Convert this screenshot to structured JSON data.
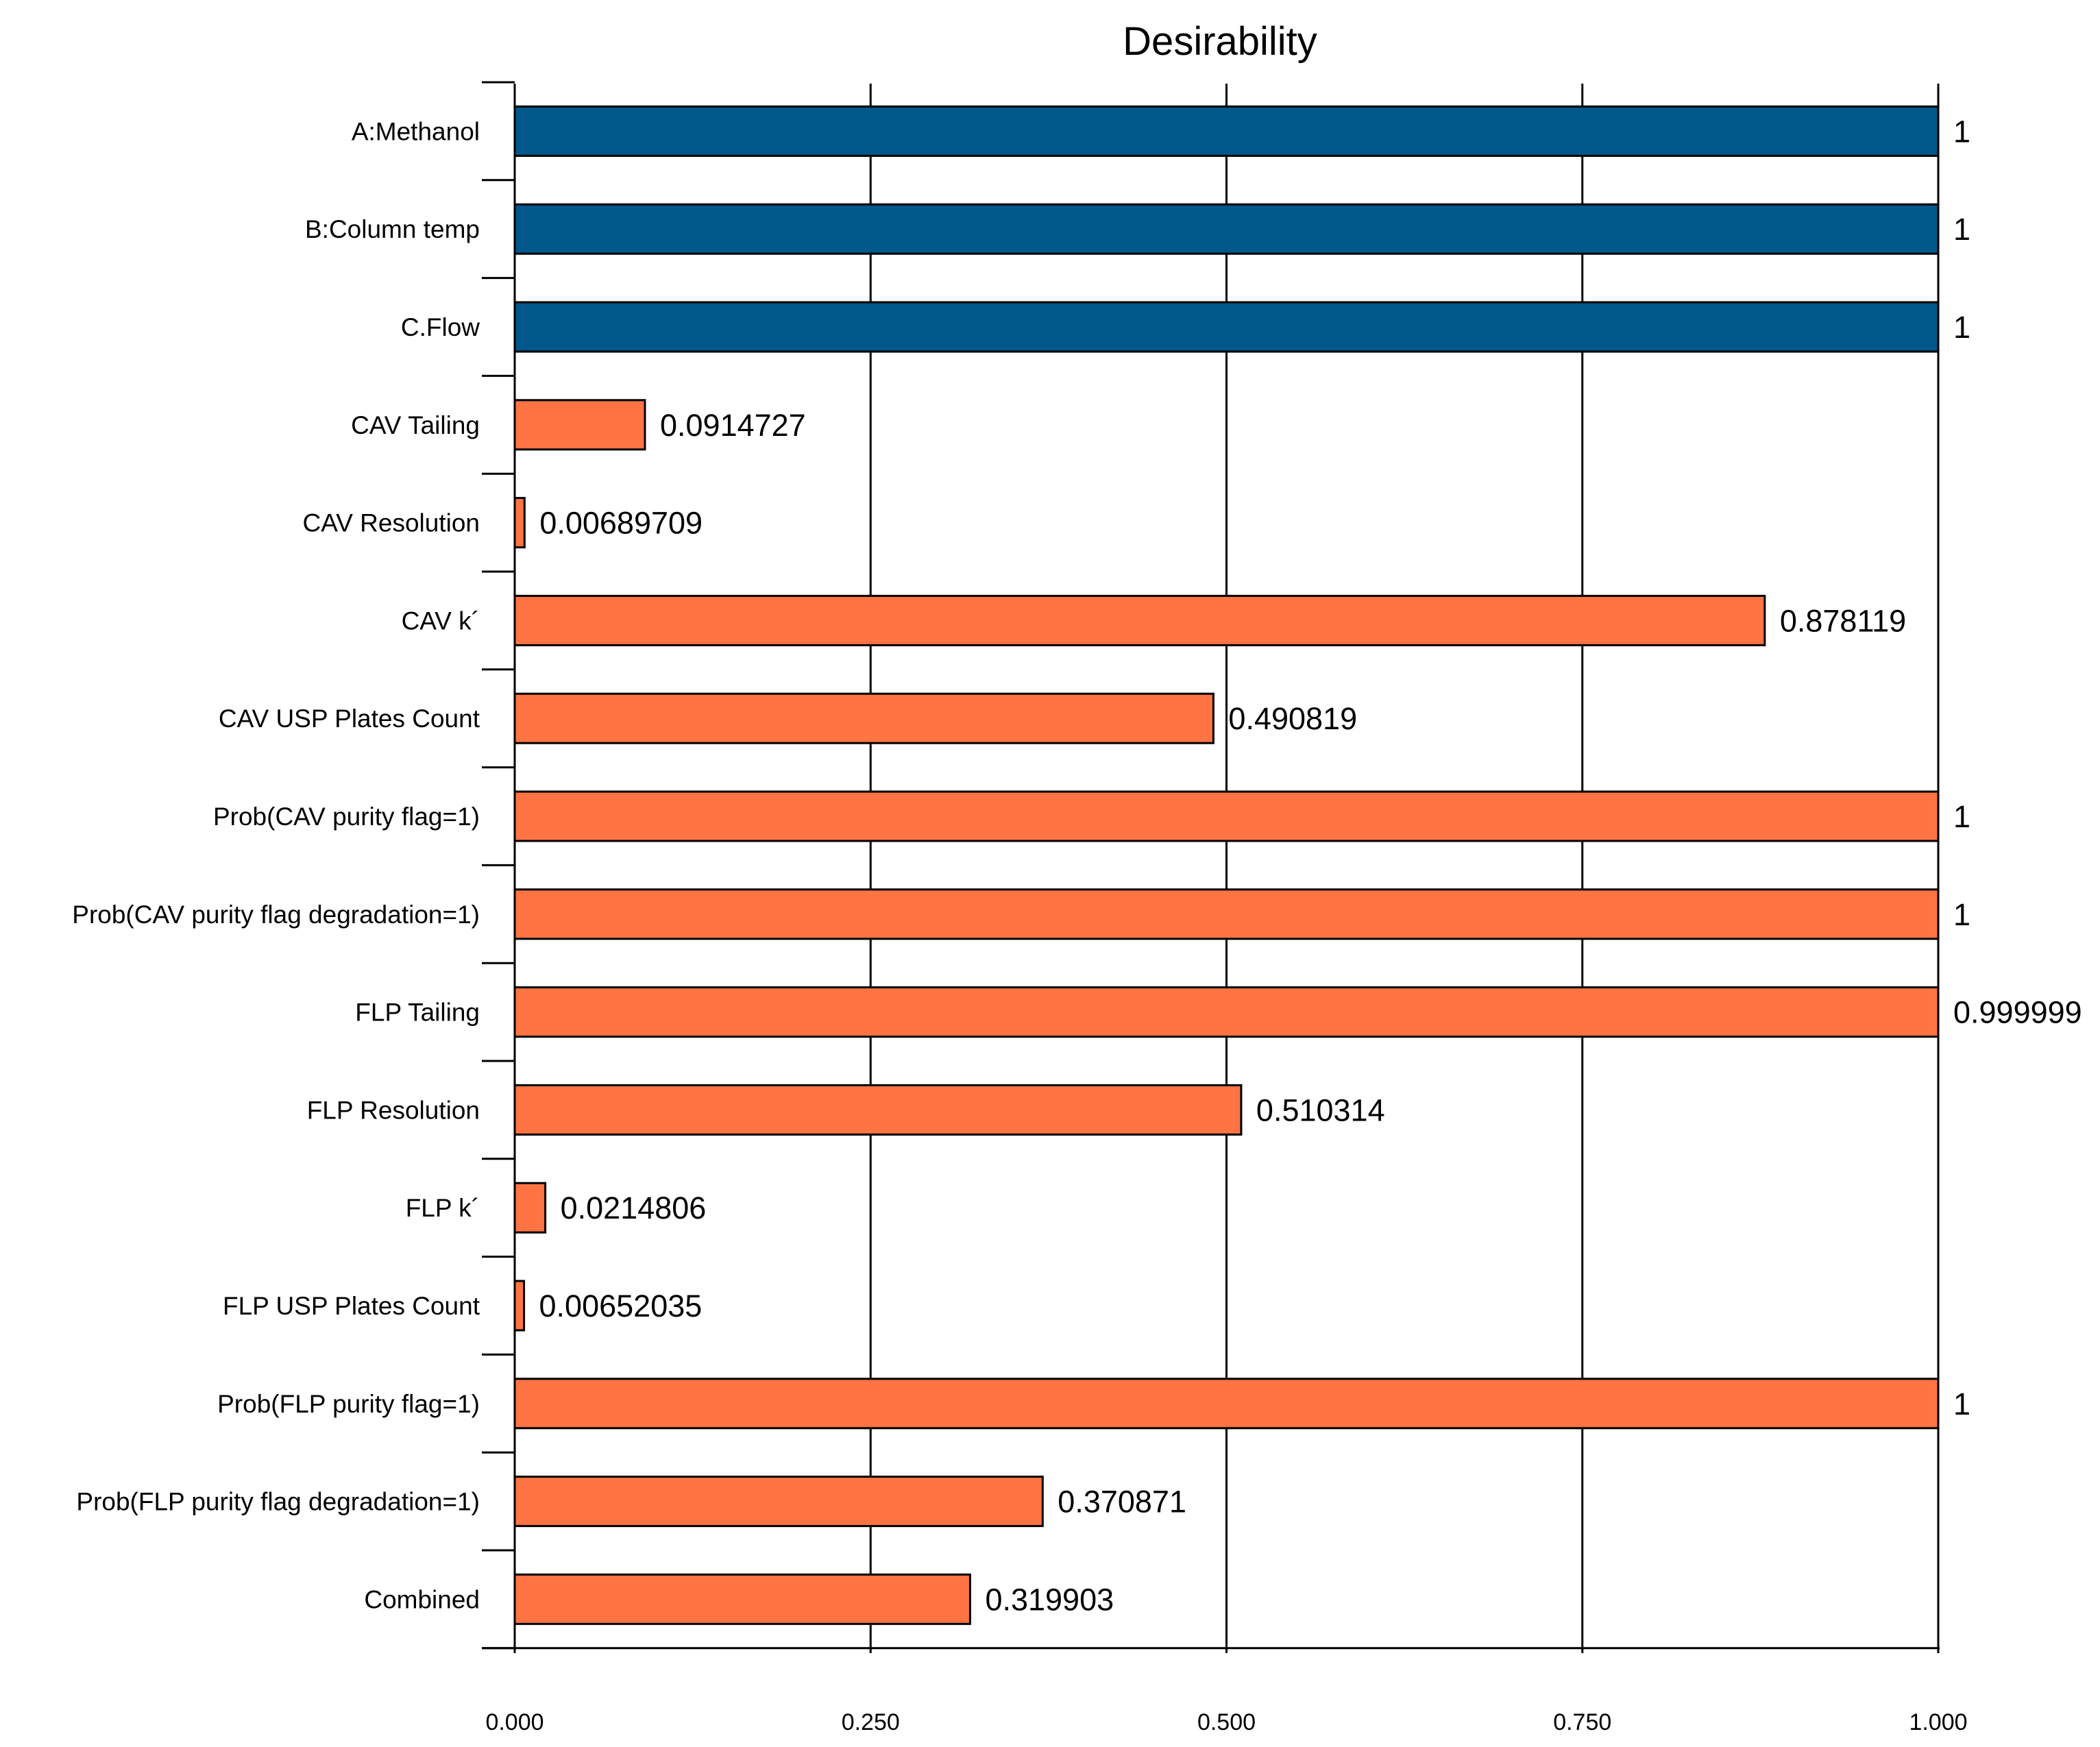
{
  "chart_data": {
    "type": "bar",
    "orientation": "horizontal",
    "title": "Desirability",
    "xlabel": "",
    "ylabel": "",
    "xlim": [
      0,
      1
    ],
    "grid": true,
    "categories": [
      "A:Methanol",
      "B:Column temp",
      "C.Flow",
      "CAV Tailing",
      "CAV Resolution",
      "CAV k´",
      "CAV USP Plates Count",
      "Prob(CAV purity flag=1)",
      "Prob(CAV purity flag degradation=1)",
      "FLP Tailing",
      "FLP Resolution",
      "FLP k´",
      "FLP USP Plates Count",
      "Prob(FLP purity flag=1)",
      "Prob(FLP purity flag degradation=1)",
      "Combined"
    ],
    "values": [
      1,
      1,
      1,
      0.0914727,
      0.00689709,
      0.878119,
      0.490819,
      1,
      1,
      0.999999,
      0.510314,
      0.0214806,
      0.00652035,
      1,
      0.370871,
      0.319903
    ],
    "value_labels": [
      "1",
      "1",
      "1",
      "0.0914727",
      "0.00689709",
      "0.878119",
      "0.490819",
      "1",
      "1",
      "0.999999",
      "0.510314",
      "0.0214806",
      "0.00652035",
      "1",
      "0.370871",
      "0.319903"
    ],
    "bar_groups": [
      "factor",
      "factor",
      "factor",
      "response",
      "response",
      "response",
      "response",
      "response",
      "response",
      "response",
      "response",
      "response",
      "response",
      "response",
      "response",
      "response"
    ],
    "colors": {
      "factor": "#00578A",
      "response": "#FF7442",
      "outline": "#000000",
      "grid": "#000000"
    },
    "x_ticks": [
      0,
      0.25,
      0.5,
      0.75,
      1
    ],
    "x_tick_labels": [
      "0.000",
      "0.250",
      "0.500",
      "0.750",
      "1.000"
    ]
  }
}
